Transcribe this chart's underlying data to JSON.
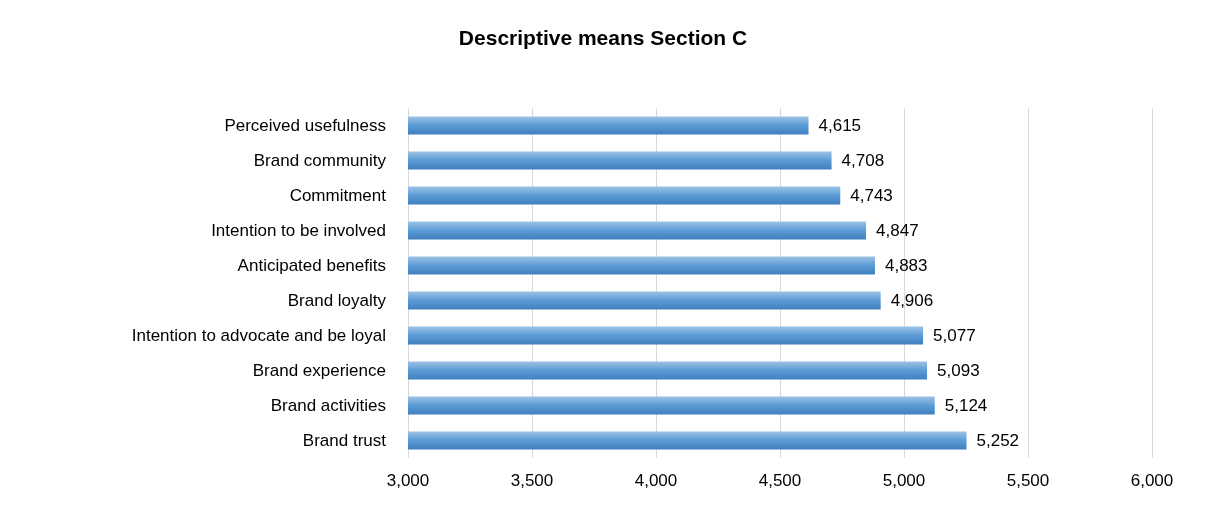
{
  "chart_data": {
    "type": "bar",
    "orientation": "horizontal",
    "title": "Descriptive means Section C",
    "categories": [
      "Perceived usefulness",
      "Brand community",
      "Commitment",
      "Intention to be involved",
      "Anticipated benefits",
      "Brand loyalty",
      "Intention to advocate and be loyal",
      "Brand experience",
      "Brand activities",
      "Brand trust"
    ],
    "values": [
      4615,
      4708,
      4743,
      4847,
      4883,
      4906,
      5077,
      5093,
      5124,
      5252
    ],
    "value_labels": [
      "4,615",
      "4,708",
      "4,743",
      "4,847",
      "4,883",
      "4,906",
      "5,077",
      "5,093",
      "5,124",
      "5,252"
    ],
    "color": "#5b9bd5",
    "xlim": [
      3000,
      6000
    ],
    "xticks": [
      {
        "value": 3000,
        "label": "3,000"
      },
      {
        "value": 3500,
        "label": "3,500"
      },
      {
        "value": 4000,
        "label": "4,000"
      },
      {
        "value": 4500,
        "label": "4,500"
      },
      {
        "value": 5000,
        "label": "5,000"
      },
      {
        "value": 5500,
        "label": "5,500"
      },
      {
        "value": 6000,
        "label": "6,000"
      }
    ],
    "grid": "x"
  }
}
